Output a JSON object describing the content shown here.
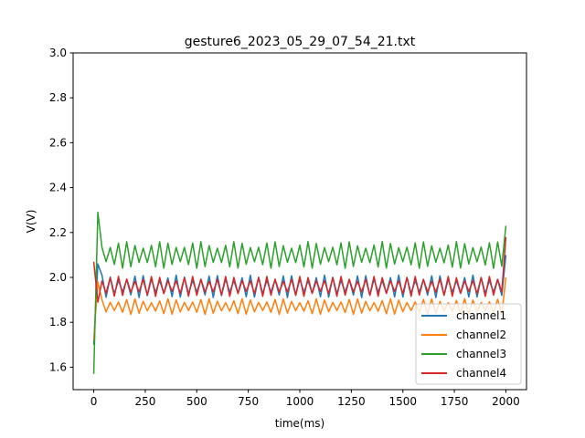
{
  "chart_data": {
    "type": "line",
    "title": "gesture6_2023_05_29_07_54_21.txt",
    "xlabel": "time(ms)",
    "ylabel": "V(V)",
    "xlim": [
      -100,
      2100
    ],
    "ylim": [
      1.5,
      3.0
    ],
    "xticks": [
      0,
      250,
      500,
      750,
      1000,
      1250,
      1500,
      1750,
      2000
    ],
    "yticks": [
      1.6,
      1.8,
      2.0,
      2.2,
      2.4,
      2.6,
      2.8,
      3.0
    ],
    "ytick_labels": [
      "1.6",
      "1.8",
      "2.0",
      "2.2",
      "2.4",
      "2.6",
      "2.8",
      "3.0"
    ],
    "grid": false,
    "legend_position": "lower-right",
    "x_range": [
      0,
      2000
    ],
    "sample_step_ms": 20,
    "series": [
      {
        "name": "channel1",
        "color": "#1f77b4",
        "base": 1.96,
        "amp": 0.05,
        "start": 1.7,
        "first": 2.06,
        "end": 2.1
      },
      {
        "name": "channel2",
        "color": "#ff7f0e",
        "base": 1.87,
        "amp": 0.035,
        "start": 1.72,
        "first": 1.98,
        "end": 2.0
      },
      {
        "name": "channel3",
        "color": "#2ca02c",
        "base": 2.1,
        "amp": 0.06,
        "start": 1.57,
        "first": 2.29,
        "end": 2.23
      },
      {
        "name": "channel4",
        "color": "#d62728",
        "base": 1.96,
        "amp": 0.045,
        "start": 2.07,
        "first": 1.89,
        "end": 2.18
      }
    ]
  }
}
